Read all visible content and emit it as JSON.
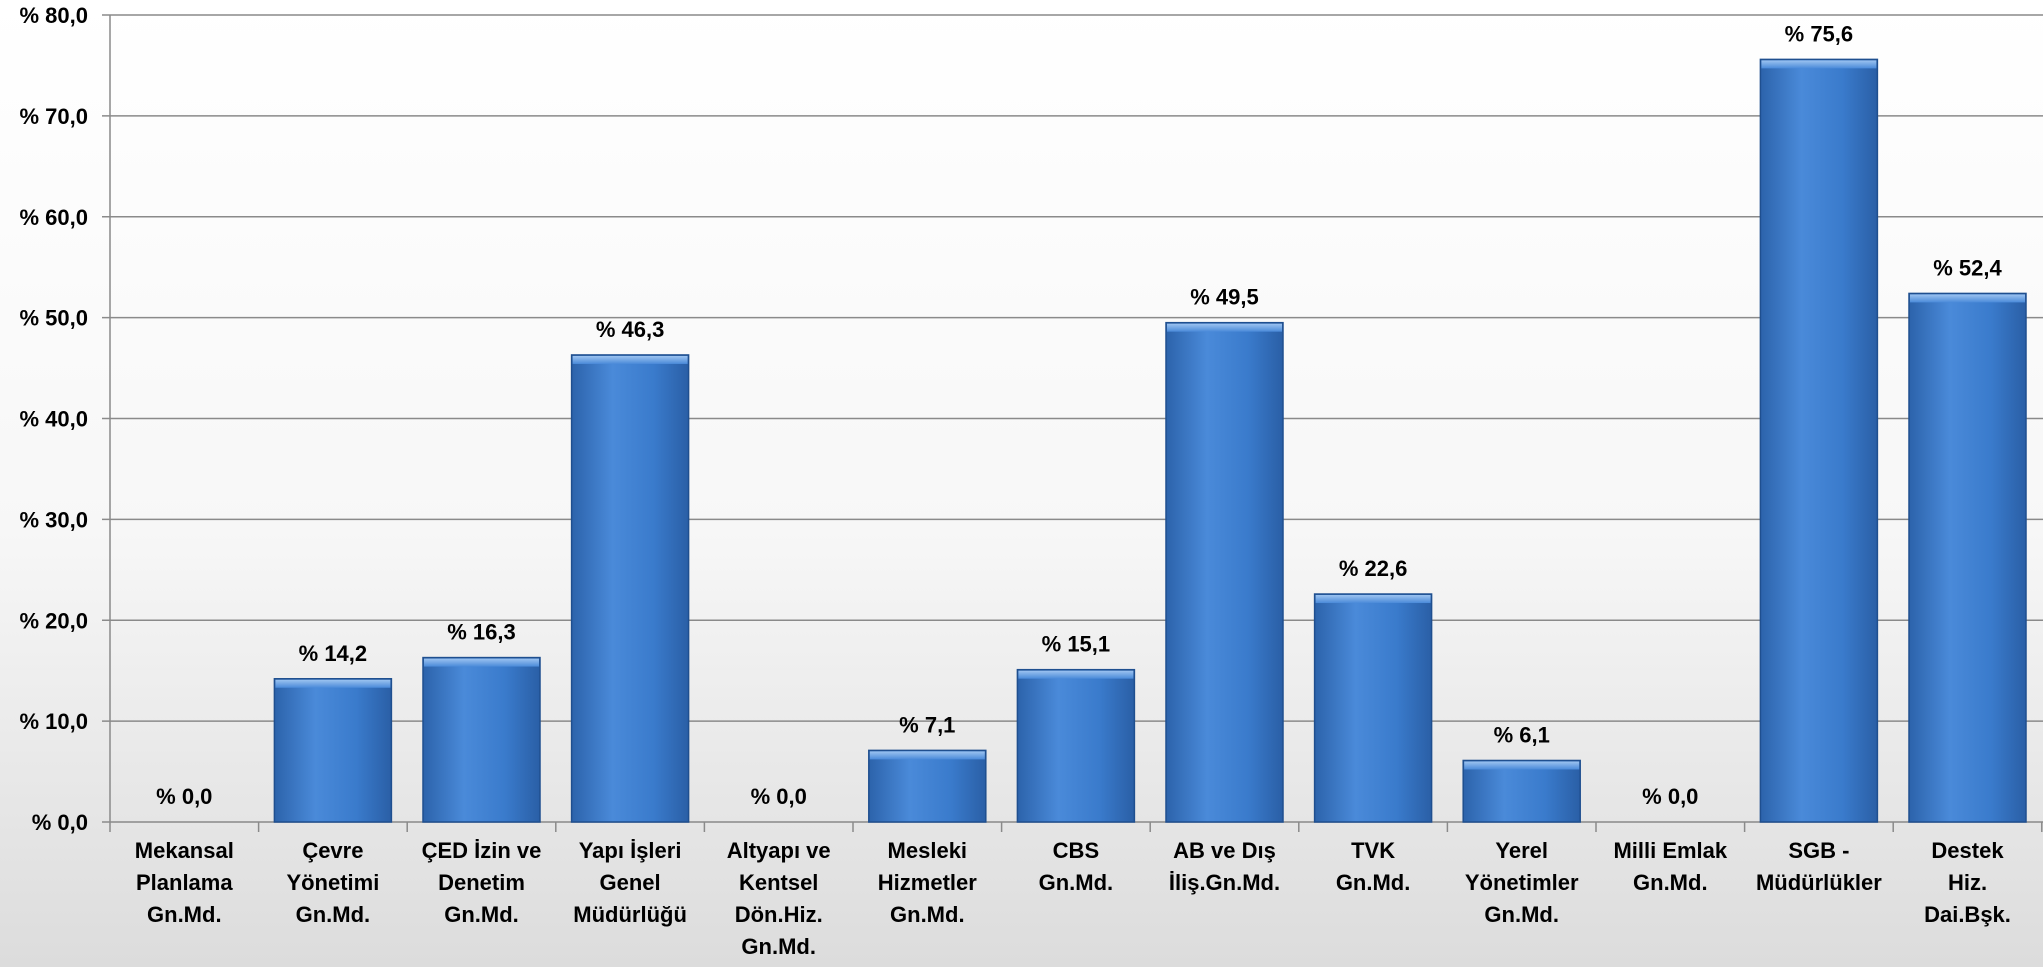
{
  "chart_data": {
    "type": "bar",
    "categories": [
      [
        "Mekansal",
        "Planlama",
        "Gn.Md."
      ],
      [
        "Çevre",
        "Yönetimi",
        "Gn.Md."
      ],
      [
        "ÇED İzin ve",
        "Denetim",
        "Gn.Md."
      ],
      [
        "Yapı İşleri",
        "Genel",
        "Müdürlüğü"
      ],
      [
        "Altyapı ve",
        "Kentsel",
        "Dön.Hiz.",
        "Gn.Md."
      ],
      [
        "Mesleki",
        "Hizmetler",
        "Gn.Md."
      ],
      [
        "CBS",
        "Gn.Md."
      ],
      [
        "AB ve Dış",
        "İliş.Gn.Md."
      ],
      [
        "TVK",
        "Gn.Md."
      ],
      [
        "Yerel",
        "Yönetimler",
        "Gn.Md."
      ],
      [
        "Milli Emlak",
        "Gn.Md."
      ],
      [
        "SGB -",
        "Müdürlükler"
      ],
      [
        "Destek",
        "Hiz.",
        "Dai.Bşk."
      ]
    ],
    "values": [
      0.0,
      14.2,
      16.3,
      46.3,
      0.0,
      7.1,
      15.1,
      49.5,
      22.6,
      6.1,
      0.0,
      75.6,
      52.4
    ],
    "data_labels": [
      "% 0,0",
      "% 14,2",
      "% 16,3",
      "% 46,3",
      "% 0,0",
      "% 7,1",
      "% 15,1",
      "% 49,5",
      "% 22,6",
      "% 6,1",
      "% 0,0",
      "% 75,6",
      "% 52,4"
    ],
    "y_ticks": [
      0,
      10,
      20,
      30,
      40,
      50,
      60,
      70,
      80
    ],
    "y_tick_labels": [
      "% 0,0",
      "% 10,0",
      "% 20,0",
      "% 30,0",
      "% 40,0",
      "% 50,0",
      "% 60,0",
      "% 70,0",
      "% 80,0"
    ],
    "ylim": [
      0,
      80
    ],
    "grid": true,
    "bar_color": "#3a7bcc",
    "title": "",
    "xlabel": "",
    "ylabel": ""
  }
}
